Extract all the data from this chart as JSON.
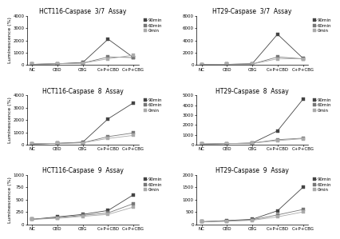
{
  "panels": [
    {
      "title": "HCT116-Caspase  3/7  Assay",
      "xlabels": [
        "NC",
        "CBD",
        "CBG",
        "C+P+CBD",
        "C+P+CBG"
      ],
      "series": [
        {
          "label": "90min",
          "values": [
            50,
            100,
            200,
            2100,
            600
          ],
          "color": "#444444"
        },
        {
          "label": "60min",
          "values": [
            50,
            100,
            150,
            650,
            600
          ],
          "color": "#777777"
        },
        {
          "label": "0min",
          "values": [
            50,
            100,
            150,
            500,
            800
          ],
          "color": "#aaaaaa"
        }
      ],
      "ylim": [
        0,
        4000
      ],
      "yticks": [
        0,
        1000,
        2000,
        3000,
        4000
      ]
    },
    {
      "title": "HT29-Caspase  3/7  Assay",
      "xlabels": [
        "NC",
        "CBD",
        "CBG",
        "C+P+CBD",
        "C+P+CBG"
      ],
      "series": [
        {
          "label": "90min",
          "values": [
            50,
            100,
            200,
            5000,
            1100
          ],
          "color": "#444444"
        },
        {
          "label": "60min",
          "values": [
            50,
            100,
            150,
            1300,
            1000
          ],
          "color": "#777777"
        },
        {
          "label": "0min",
          "values": [
            50,
            100,
            150,
            1000,
            1000
          ],
          "color": "#aaaaaa"
        }
      ],
      "ylim": [
        0,
        8000
      ],
      "yticks": [
        0,
        2000,
        4000,
        6000,
        8000
      ]
    },
    {
      "title": "HCT116-Caspase  8  Assay",
      "xlabels": [
        "NC",
        "CBD",
        "CBG",
        "C+P+CBD",
        "C+P+CBG"
      ],
      "series": [
        {
          "label": "90min",
          "values": [
            50,
            100,
            200,
            2100,
            3400
          ],
          "color": "#444444"
        },
        {
          "label": "60min",
          "values": [
            50,
            100,
            150,
            650,
            950
          ],
          "color": "#777777"
        },
        {
          "label": "0min",
          "values": [
            50,
            100,
            150,
            500,
            750
          ],
          "color": "#aaaaaa"
        }
      ],
      "ylim": [
        0,
        4000
      ],
      "yticks": [
        0,
        1000,
        2000,
        3000,
        4000
      ]
    },
    {
      "title": "HT29-Caspase  8  Assay",
      "xlabels": [
        "NC",
        "CBD",
        "CBG",
        "C+P+CBD",
        "C+P+CBG"
      ],
      "series": [
        {
          "label": "90min",
          "values": [
            50,
            100,
            150,
            1400,
            4600
          ],
          "color": "#444444"
        },
        {
          "label": "60min",
          "values": [
            50,
            100,
            150,
            500,
            650
          ],
          "color": "#777777"
        },
        {
          "label": "0min",
          "values": [
            50,
            100,
            150,
            400,
            600
          ],
          "color": "#aaaaaa"
        }
      ],
      "ylim": [
        0,
        5000
      ],
      "yticks": [
        0,
        1000,
        2000,
        3000,
        4000,
        5000
      ]
    },
    {
      "title": "HCT116-Caspase  9  Assay",
      "xlabels": [
        "NC",
        "CBD",
        "CBG",
        "C+P+CBD",
        "C+P+CBG"
      ],
      "series": [
        {
          "label": "90min",
          "values": [
            100,
            150,
            200,
            280,
            600
          ],
          "color": "#444444"
        },
        {
          "label": "60min",
          "values": [
            100,
            130,
            180,
            230,
            420
          ],
          "color": "#777777"
        },
        {
          "label": "0min",
          "values": [
            100,
            120,
            160,
            200,
            350
          ],
          "color": "#aaaaaa"
        }
      ],
      "ylim": [
        0,
        1000
      ],
      "yticks": [
        0,
        250,
        500,
        750,
        1000
      ]
    },
    {
      "title": "HT29-Caspase  9  Assay",
      "xlabels": [
        "NC",
        "CBD",
        "CBG",
        "C+P+CBD",
        "C+P+CBG"
      ],
      "series": [
        {
          "label": "90min",
          "values": [
            100,
            150,
            200,
            550,
            1500
          ],
          "color": "#444444"
        },
        {
          "label": "60min",
          "values": [
            100,
            130,
            180,
            380,
            600
          ],
          "color": "#777777"
        },
        {
          "label": "0min",
          "values": [
            100,
            120,
            160,
            300,
            500
          ],
          "color": "#aaaaaa"
        }
      ],
      "ylim": [
        0,
        2000
      ],
      "yticks": [
        0,
        500,
        1000,
        1500,
        2000
      ]
    }
  ],
  "ylabel": "Luminescence (%)",
  "background_color": "#ffffff",
  "title_fontsize": 5.5,
  "axis_fontsize": 4.5,
  "tick_fontsize": 4.0,
  "legend_fontsize": 4.0,
  "marker_size": 2.5,
  "linewidth": 0.6
}
